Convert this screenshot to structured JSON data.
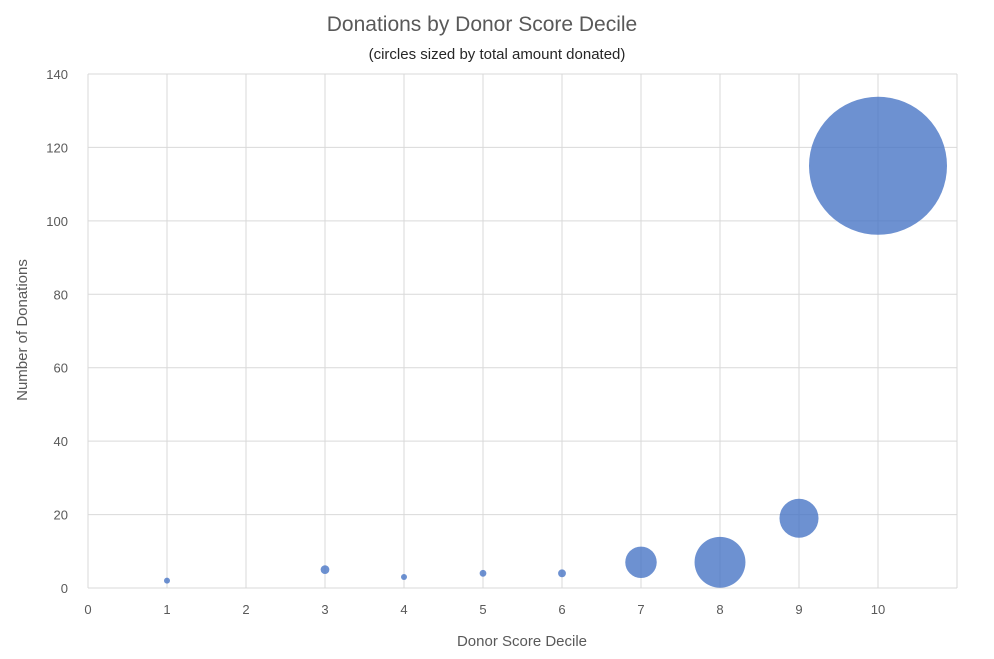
{
  "chart_data": {
    "type": "scatter",
    "title": "Donations by Donor Score Decile",
    "subtitle": "(circles sized by  total amount donated)",
    "xlabel": "Donor Score Decile",
    "ylabel": "Number of Donations",
    "xlim": [
      0,
      11
    ],
    "ylim": [
      0,
      140
    ],
    "xticks": [
      "0",
      "1",
      "2",
      "3",
      "4",
      "5",
      "6",
      "7",
      "8",
      "9",
      "10"
    ],
    "yticks": [
      "0",
      "20",
      "40",
      "60",
      "80",
      "100",
      "120",
      "140"
    ],
    "grid": true,
    "series_color": "#4472c4",
    "points": [
      {
        "x": 1,
        "y": 2,
        "size": 0.26
      },
      {
        "x": 3,
        "y": 5,
        "size": 1.0
      },
      {
        "x": 4,
        "y": 3,
        "size": 0.38
      },
      {
        "x": 5,
        "y": 4,
        "size": 0.6
      },
      {
        "x": 6,
        "y": 4,
        "size": 0.8
      },
      {
        "x": 7,
        "y": 7,
        "size": 13
      },
      {
        "x": 8,
        "y": 7,
        "size": 34
      },
      {
        "x": 9,
        "y": 19,
        "size": 20
      },
      {
        "x": 10,
        "y": 115,
        "size": 250
      }
    ]
  }
}
